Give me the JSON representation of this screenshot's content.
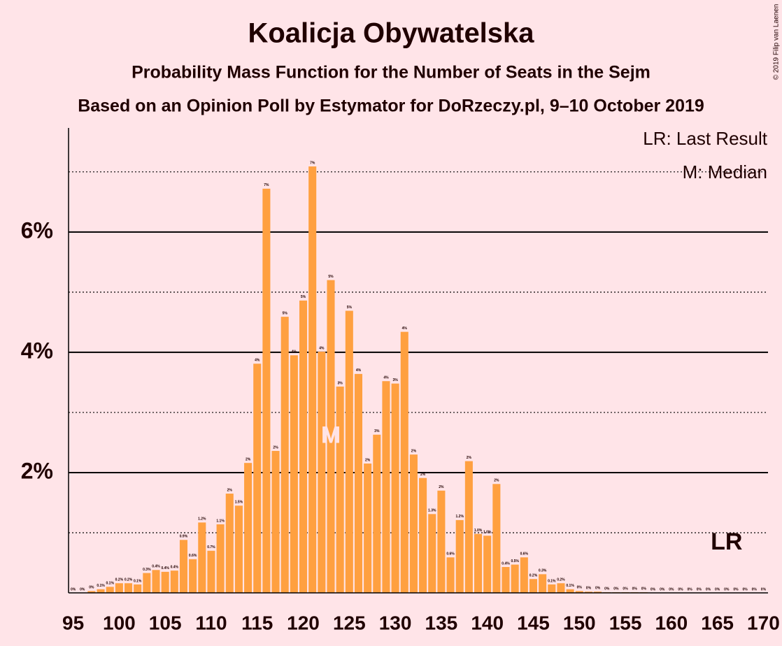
{
  "chart_data": {
    "type": "bar",
    "title": "Koalicja Obywatelska",
    "subtitle": "Probability Mass Function for the Number of Seats in the Sejm",
    "subtitle2": "Based on an Opinion Poll by Estymator for DoRzeczy.pl, 9–10 October 2019",
    "credit": "© 2019 Filip van Laenen",
    "legend": [
      "LR: Last Result",
      "M: Median"
    ],
    "annotations": [
      {
        "text": "M",
        "x": 123
      },
      {
        "text": "LR",
        "x": 166
      }
    ],
    "color": "#ffa040",
    "x": [
      95,
      96,
      97,
      98,
      99,
      100,
      101,
      102,
      103,
      104,
      105,
      106,
      107,
      108,
      109,
      110,
      111,
      112,
      113,
      114,
      115,
      116,
      117,
      118,
      119,
      120,
      121,
      122,
      123,
      124,
      125,
      126,
      127,
      128,
      129,
      130,
      131,
      132,
      133,
      134,
      135,
      136,
      137,
      138,
      139,
      140,
      141,
      142,
      143,
      144,
      145,
      146,
      147,
      148,
      149,
      150,
      151,
      152,
      153,
      154,
      155,
      156,
      157,
      158,
      159,
      160,
      161,
      162,
      163,
      164,
      165,
      166,
      167,
      168,
      169,
      170
    ],
    "values": [
      0,
      0,
      0.03,
      0.06,
      0.1,
      0.16,
      0.16,
      0.14,
      0.33,
      0.38,
      0.35,
      0.37,
      0.88,
      0.56,
      1.17,
      0.7,
      1.14,
      1.65,
      1.45,
      2.16,
      3.81,
      6.72,
      2.36,
      4.59,
      3.95,
      4.86,
      7.09,
      4.01,
      5.2,
      3.43,
      4.69,
      3.64,
      2.15,
      2.63,
      3.52,
      3.48,
      4.34,
      2.3,
      1.91,
      1.31,
      1.7,
      0.59,
      1.21,
      2.19,
      0.98,
      0.95,
      1.81,
      0.43,
      0.47,
      0.59,
      0.23,
      0.31,
      0.14,
      0.16,
      0.06,
      0.03,
      0.02,
      0.02,
      0.01,
      0.01,
      0.01,
      0.01,
      0.01,
      0,
      0,
      0,
      0,
      0,
      0,
      0,
      0,
      0,
      0,
      0,
      0,
      0
    ],
    "value_labels": [
      "0%",
      "0%",
      "0%",
      "0.1%",
      "0.1%",
      "0.2%",
      "0.2%",
      "0.1%",
      "0.3%",
      "0.4%",
      "0.4%",
      "0.4%",
      "0.9%",
      "0.6%",
      "1.2%",
      "0.7%",
      "1.1%",
      "2%",
      "1.5%",
      "2%",
      "4%",
      "7%",
      "2%",
      "5%",
      "4%",
      "5%",
      "7%",
      "4%",
      "5%",
      "3%",
      "5%",
      "4%",
      "2%",
      "3%",
      "4%",
      "3%",
      "4%",
      "2%",
      "2%",
      "1.3%",
      "2%",
      "0.6%",
      "1.2%",
      "2%",
      "1.0%",
      "1.0%",
      "2%",
      "0.4%",
      "0.5%",
      "0.6%",
      "0.2%",
      "0.3%",
      "0.1%",
      "0.2%",
      "0.1%",
      "0%",
      "0%",
      "0%",
      "0%",
      "0%",
      "0%",
      "0%",
      "0%",
      "0%",
      "0%",
      "0%",
      "0%",
      "0%",
      "0%",
      "0%",
      "0%",
      "0%",
      "0%",
      "0%",
      "0%",
      "0%"
    ],
    "xlim": [
      94.5,
      170.5
    ],
    "xticks": [
      95,
      100,
      105,
      110,
      115,
      120,
      125,
      130,
      135,
      140,
      145,
      150,
      155,
      160,
      165,
      170
    ],
    "ylim": [
      0,
      7.73
    ],
    "yticks": [
      {
        "value": 2,
        "label": "2%"
      },
      {
        "value": 4,
        "label": "4%"
      },
      {
        "value": 6,
        "label": "6%"
      }
    ],
    "minor_yticks": [
      1,
      3,
      5,
      7
    ],
    "grid": true
  }
}
